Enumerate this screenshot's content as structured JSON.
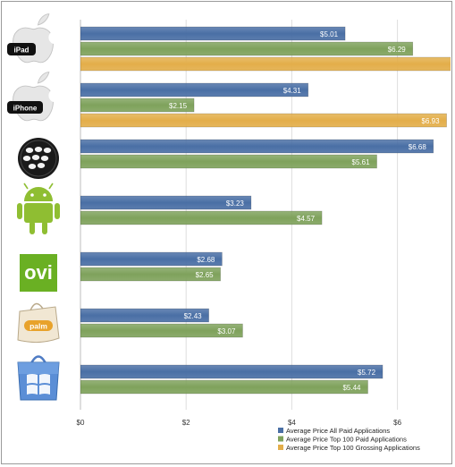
{
  "chart_data": {
    "type": "bar",
    "orientation": "horizontal",
    "categories": [
      "iPad",
      "iPhone",
      "BlackBerry",
      "Android",
      "Ovi",
      "Palm",
      "Windows Phone"
    ],
    "category_labels_printed": {
      "iPad": "iPad",
      "iPhone": "iPhone",
      "Ovi": "ovi",
      "Palm": "palm"
    },
    "series": [
      {
        "name": "Average Price All Paid Applications",
        "color": "#4a6fa5",
        "values": [
          5.01,
          4.31,
          6.68,
          3.23,
          2.68,
          2.43,
          5.72
        ],
        "labels": [
          "$5.01",
          "$4.31",
          "$6.68",
          "$3.23",
          "$2.68",
          "$2.43",
          "$5.72"
        ]
      },
      {
        "name": "Average Price Top 100 Paid Applications",
        "color": "#7fa25c",
        "values": [
          6.29,
          2.15,
          5.61,
          4.57,
          2.65,
          3.07,
          5.44
        ],
        "labels": [
          "$6.29",
          "$2.15",
          "$5.61",
          "$4.57",
          "$2.65",
          "$3.07",
          "$5.44"
        ]
      },
      {
        "name": "Average Price Top 100 Grossing Applications",
        "color": "#e3ae4a",
        "values": [
          7.1,
          6.93,
          null,
          null,
          null,
          null,
          null
        ],
        "labels": [
          "",
          "$6.93",
          "",
          "",
          "",
          "",
          ""
        ]
      }
    ],
    "x_ticks": [
      "$0",
      "$2",
      "$4",
      "$6"
    ],
    "x_tick_values": [
      0,
      2,
      4,
      6
    ],
    "xlim": [
      0,
      7
    ],
    "grid": true,
    "legend_position": "bottom-right",
    "logo_icons": [
      "apple-icon",
      "apple-icon",
      "blackberry-icon",
      "android-icon",
      "ovi-icon",
      "palm-icon",
      "windows-marketplace-icon"
    ]
  }
}
